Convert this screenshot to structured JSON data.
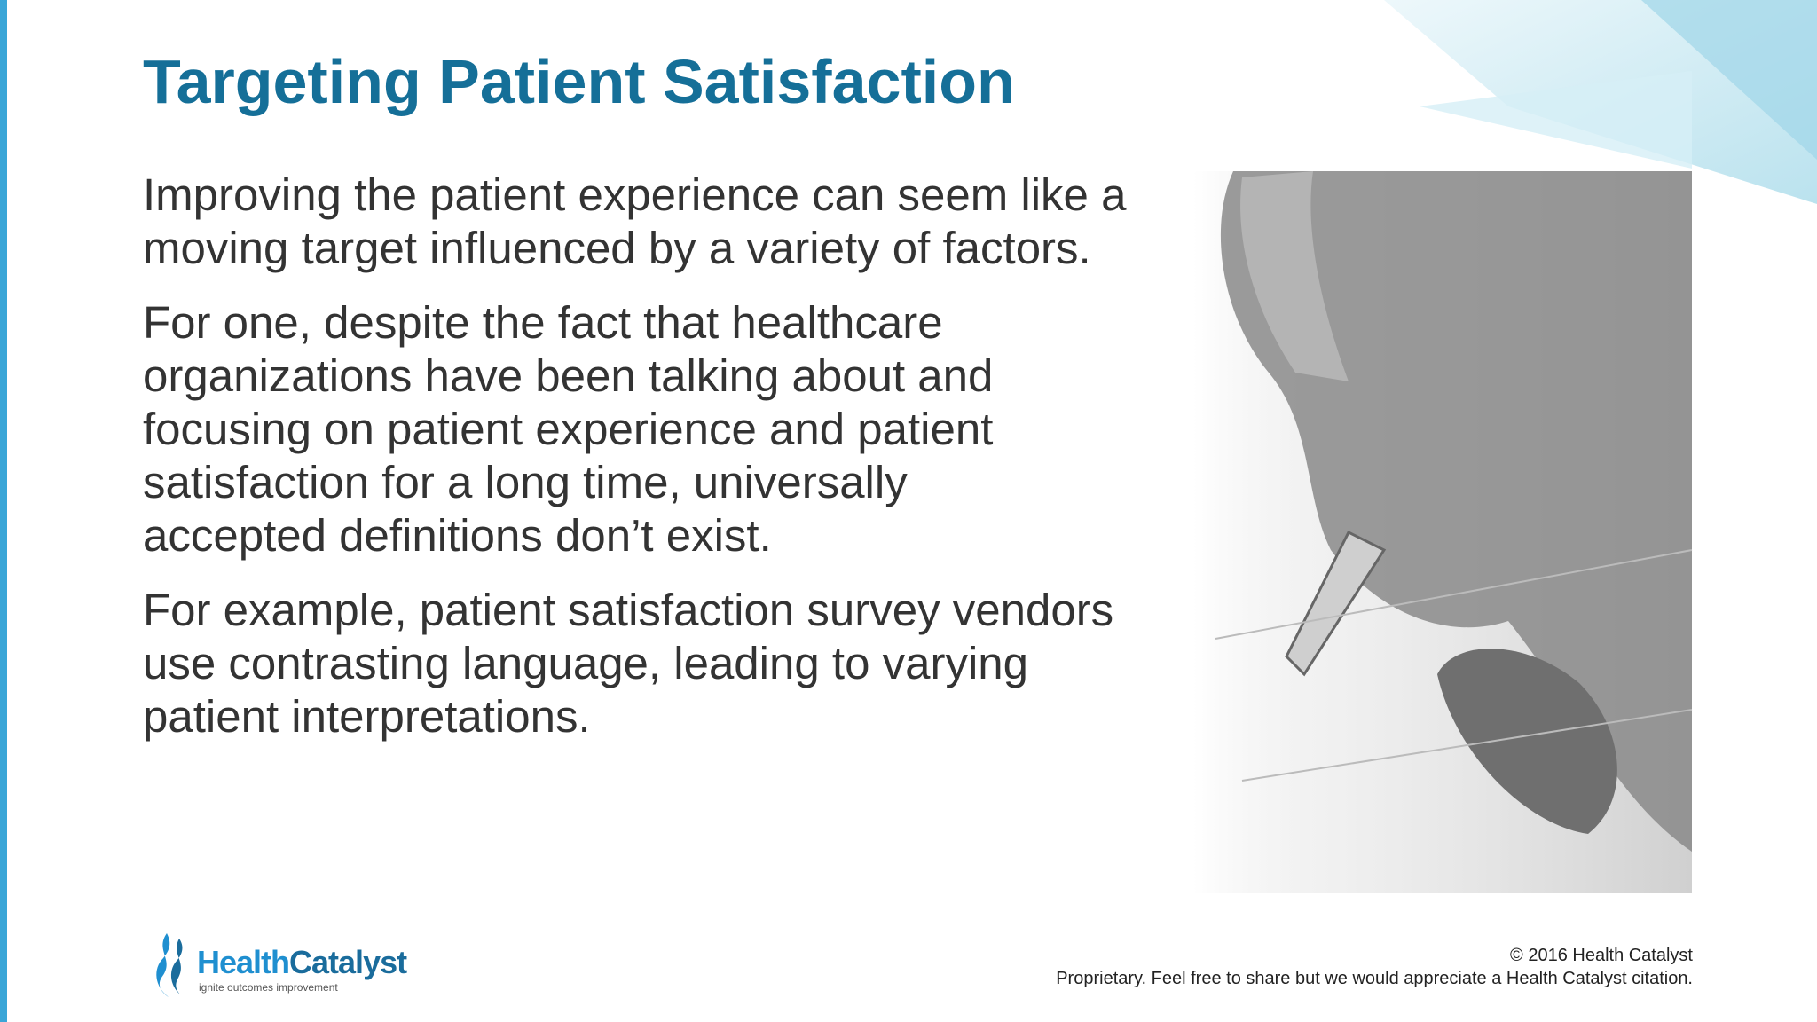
{
  "slide": {
    "title": "Targeting Patient Satisfaction",
    "paragraphs": [
      {
        "lines": [
          "Improving the patient experience can seem like a",
          "moving target influenced by a variety of factors."
        ]
      },
      {
        "lines": [
          "For one, despite the fact that healthcare",
          "organizations have been talking about and",
          "focusing on patient experience and patient",
          "satisfaction for a long time, universally",
          "accepted definitions don’t exist."
        ]
      },
      {
        "lines": [
          "For example, patient satisfaction survey vendors",
          "use contrasting language, leading to varying",
          "patient interpretations."
        ]
      }
    ],
    "logo": {
      "name_part1": "Health",
      "name_part2": "Catalyst",
      "tagline": "ignite outcomes improvement"
    },
    "footer": {
      "copyright": "© 2016 Health Catalyst",
      "notice": "Proprietary. Feel free to share but we would appreciate a Health Catalyst citation."
    }
  }
}
